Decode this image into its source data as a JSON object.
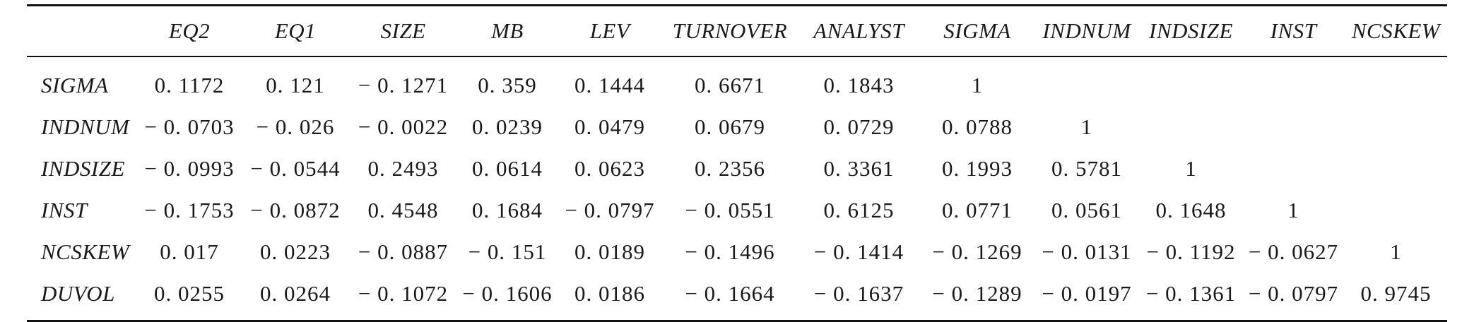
{
  "table": {
    "columns": [
      "",
      "EQ2",
      "EQ1",
      "SIZE",
      "MB",
      "LEV",
      "TURNOVER",
      "ANALYST",
      "SIGMA",
      "INDNUM",
      "INDSIZE",
      "INST",
      "NCSKEW"
    ],
    "rows": [
      {
        "label": "SIGMA",
        "cells": [
          "0. 1172",
          "0. 121",
          "− 0. 1271",
          "0. 359",
          "0. 1444",
          "0. 6671",
          "0. 1843",
          "1",
          "",
          "",
          "",
          ""
        ]
      },
      {
        "label": "INDNUM",
        "cells": [
          "− 0. 0703",
          "− 0. 026",
          "− 0. 0022",
          "0. 0239",
          "0. 0479",
          "0. 0679",
          "0. 0729",
          "0. 0788",
          "1",
          "",
          "",
          ""
        ]
      },
      {
        "label": "INDSIZE",
        "cells": [
          "− 0. 0993",
          "− 0. 0544",
          "0. 2493",
          "0. 0614",
          "0. 0623",
          "0. 2356",
          "0. 3361",
          "0. 1993",
          "0. 5781",
          "1",
          "",
          ""
        ]
      },
      {
        "label": "INST",
        "cells": [
          "− 0. 1753",
          "− 0. 0872",
          "0. 4548",
          "0. 1684",
          "− 0. 0797",
          "− 0. 0551",
          "0. 6125",
          "0. 0771",
          "0. 0561",
          "0. 1648",
          "1",
          ""
        ]
      },
      {
        "label": "NCSKEW",
        "cells": [
          "0. 017",
          "0. 0223",
          "− 0. 0887",
          "− 0. 151",
          "0. 0189",
          "− 0. 1496",
          "− 0. 1414",
          "− 0. 1269",
          "− 0. 0131",
          "− 0. 1192",
          "− 0. 0627",
          "1"
        ]
      },
      {
        "label": "DUVOL",
        "cells": [
          "0. 0255",
          "0. 0264",
          "− 0. 1072",
          "− 0. 1606",
          "0. 0186",
          "− 0. 1664",
          "− 0. 1637",
          "− 0. 1289",
          "− 0. 0197",
          "− 0. 1361",
          "− 0. 0797",
          "0. 9745"
        ]
      }
    ]
  }
}
